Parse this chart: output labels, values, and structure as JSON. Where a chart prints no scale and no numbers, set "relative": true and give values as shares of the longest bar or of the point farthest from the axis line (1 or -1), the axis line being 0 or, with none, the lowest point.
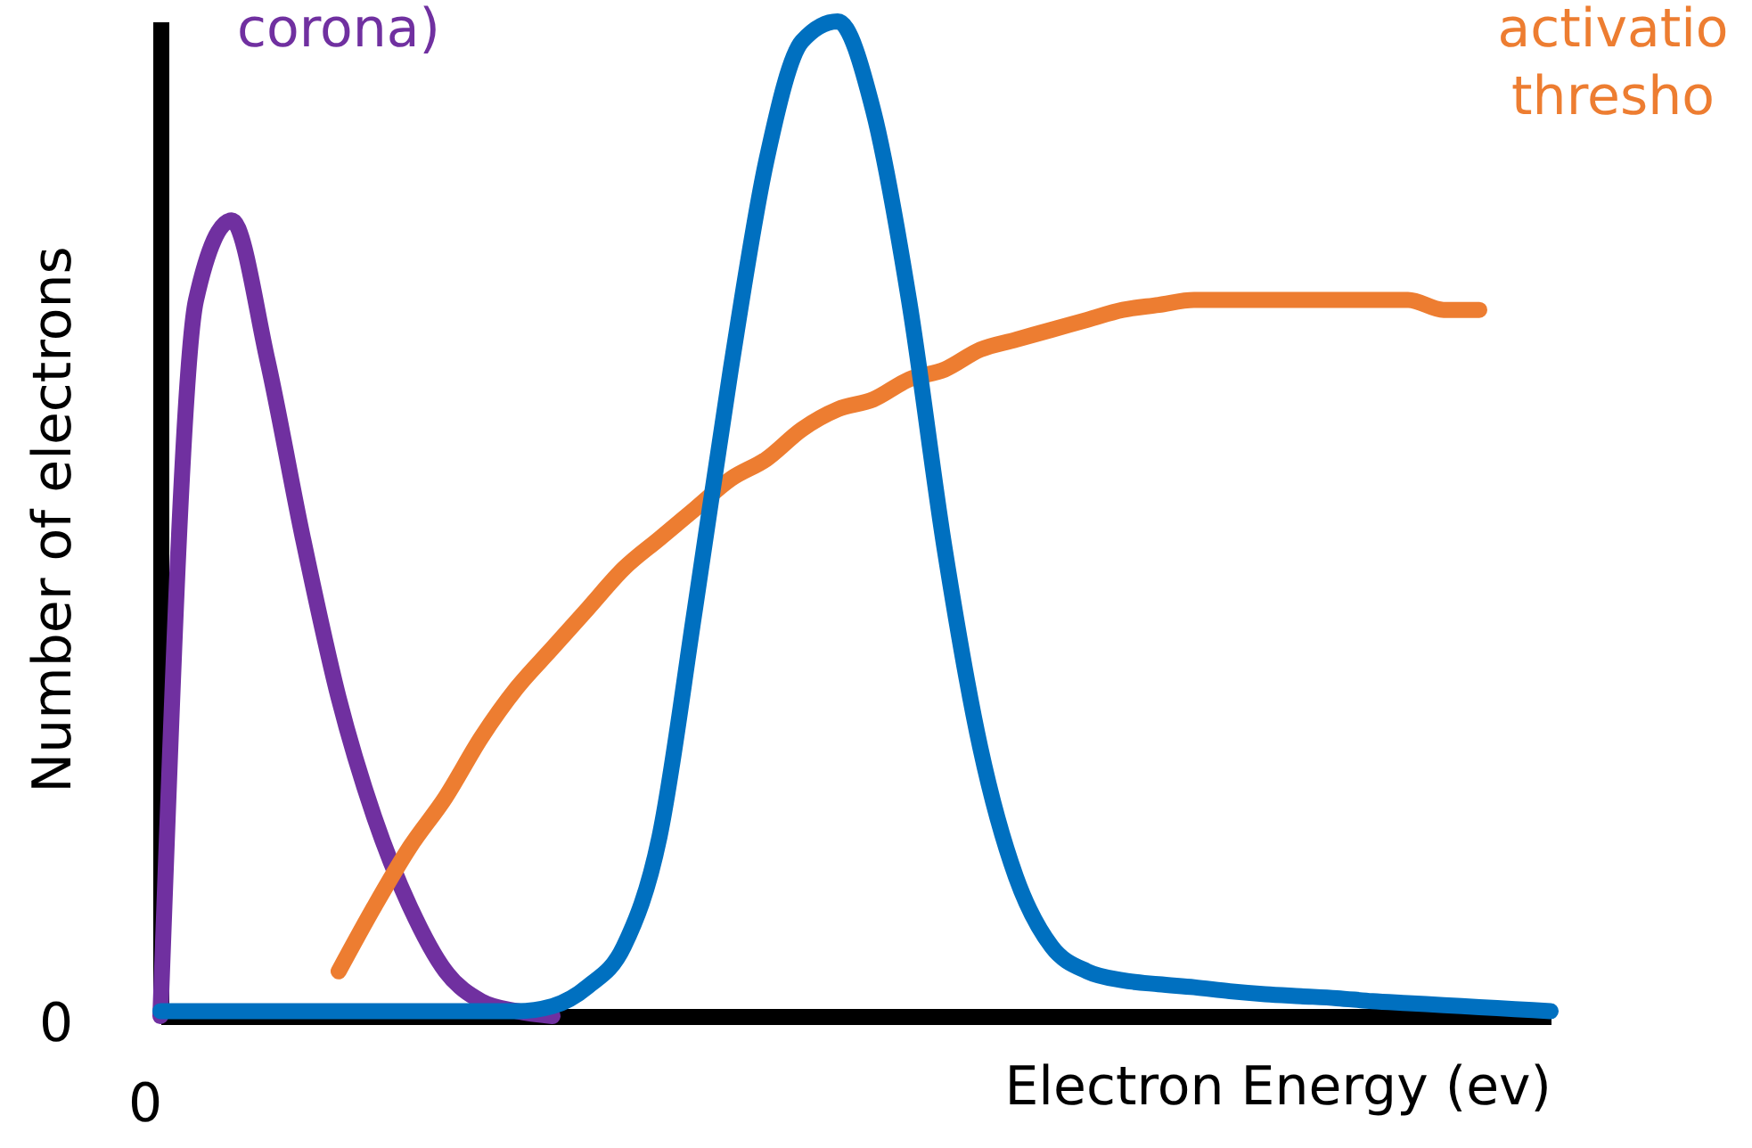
{
  "chart_data": {
    "type": "line",
    "relative": true,
    "xlabel": "Electron Energy (ev)",
    "ylabel": "Number of electrons",
    "categories": [
      null,
      null,
      null,
      null,
      null,
      null,
      null,
      null,
      null,
      null,
      null,
      null,
      null,
      null,
      null,
      null,
      null,
      null,
      null,
      null,
      null,
      null,
      null,
      null,
      null,
      null,
      null,
      null,
      null,
      null,
      null,
      null,
      null,
      null,
      null,
      null,
      null,
      null,
      null,
      null
    ],
    "series": [
      {
        "color": "#7030a0",
        "values": [
          0,
          0.72,
          0.8,
          0.66,
          0.48,
          0.32,
          0.2,
          0.11,
          0.045,
          0.015,
          0.005,
          0,
          null,
          null,
          null,
          null,
          null,
          null,
          null,
          null,
          null,
          null,
          null,
          null,
          null,
          null,
          null,
          null,
          null,
          null,
          null,
          null,
          null,
          null,
          null,
          null,
          null,
          null,
          null,
          null
        ]
      },
      {
        "color": "#ed7d31",
        "values": [
          null,
          null,
          null,
          null,
          null,
          0.045,
          0.11,
          0.17,
          0.22,
          0.28,
          0.33,
          0.37,
          0.41,
          0.45,
          0.48,
          0.51,
          0.54,
          0.56,
          0.59,
          0.61,
          0.62,
          0.64,
          0.65,
          0.67,
          0.68,
          0.69,
          0.7,
          0.71,
          0.715,
          0.72,
          0.72,
          0.72,
          0.72,
          0.72,
          0.72,
          0.72,
          0.71,
          0.71,
          null,
          null
        ]
      },
      {
        "color": "#0070c0",
        "values": [
          0.005,
          0.005,
          0.005,
          0.005,
          0.005,
          0.005,
          0.005,
          0.005,
          0.005,
          0.005,
          0.005,
          0.01,
          0.03,
          0.07,
          0.18,
          0.41,
          0.65,
          0.86,
          0.98,
          1,
          0.91,
          0.72,
          0.47,
          0.27,
          0.14,
          0.07,
          0.045,
          0.036,
          0.032,
          0.029,
          0.025,
          0.022,
          0.02,
          0.018,
          0.015,
          0.013,
          0.011,
          0.009,
          0.007,
          0.005
        ]
      }
    ],
    "annotations": [
      "corona)",
      "activatio",
      "thresho",
      "0",
      "0"
    ],
    "line_style": "solid"
  }
}
